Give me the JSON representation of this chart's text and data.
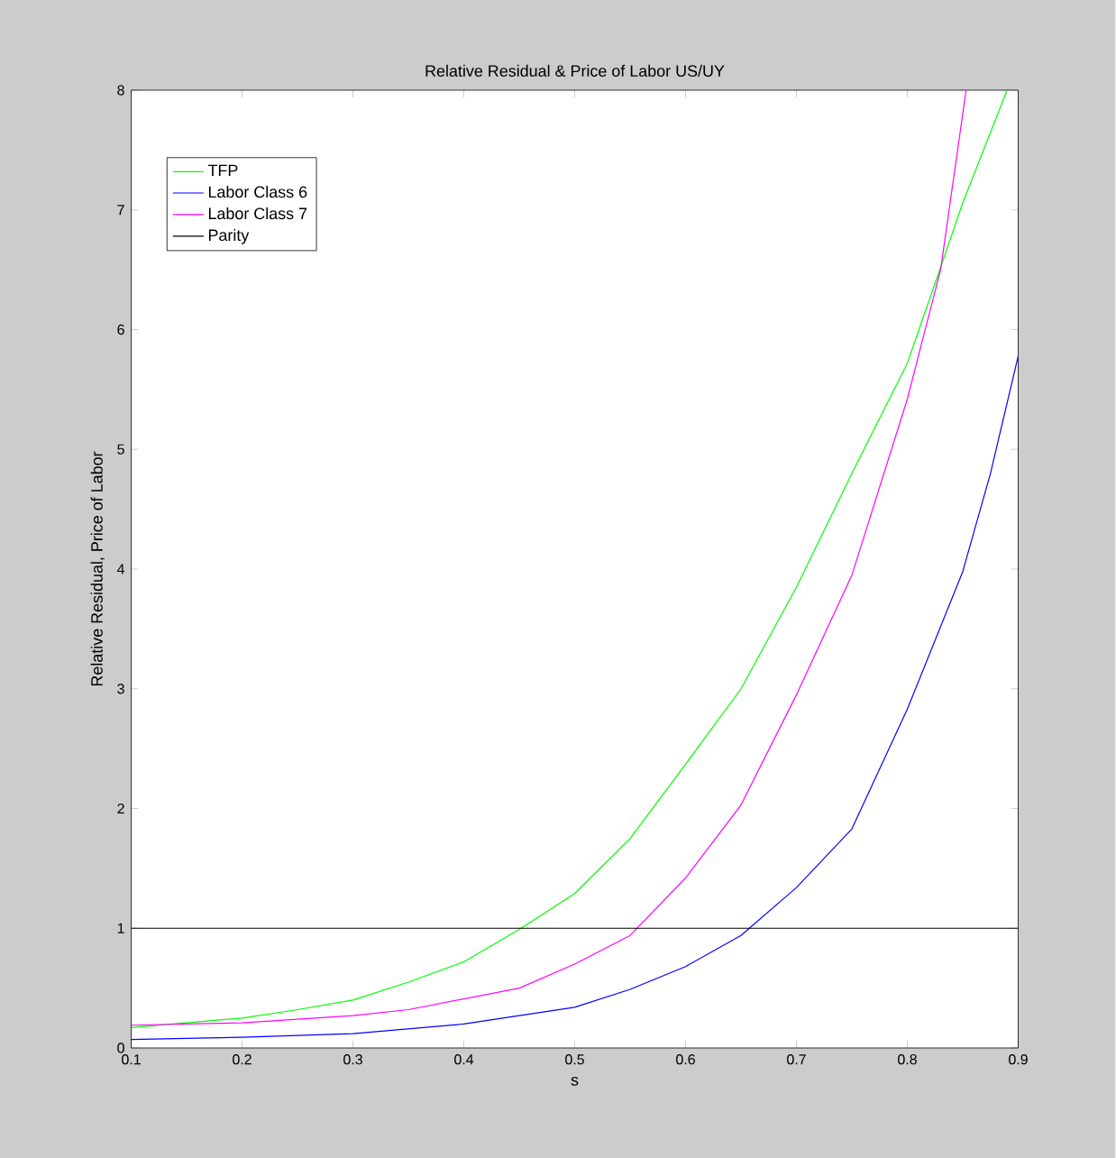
{
  "chart_data": {
    "type": "line",
    "title": "Relative Residual & Price of Labor US/UY",
    "xlabel": "s",
    "ylabel": "Relative Residual, Price of Labor",
    "xlim": [
      0.1,
      0.9
    ],
    "ylim": [
      0,
      8
    ],
    "xticks": [
      0.1,
      0.2,
      0.3,
      0.4,
      0.5,
      0.6,
      0.7,
      0.8,
      0.9
    ],
    "yticks": [
      0,
      1,
      2,
      3,
      4,
      5,
      6,
      7,
      8
    ],
    "legend": "top left",
    "line_style": "solid",
    "series": [
      {
        "name": "TFP",
        "color": "#00ff00",
        "x": [
          0.1,
          0.2,
          0.25,
          0.3,
          0.35,
          0.4,
          0.45,
          0.5,
          0.55,
          0.6,
          0.65,
          0.7,
          0.75,
          0.8,
          0.83,
          0.85,
          0.89
        ],
        "values": [
          0.17,
          0.25,
          0.32,
          0.4,
          0.55,
          0.72,
          0.99,
          1.29,
          1.75,
          2.37,
          3.0,
          3.85,
          4.8,
          5.72,
          6.52,
          7.06,
          8.0
        ]
      },
      {
        "name": "Labor Class 6",
        "color": "#0000ff",
        "x": [
          0.1,
          0.2,
          0.3,
          0.4,
          0.5,
          0.55,
          0.6,
          0.65,
          0.7,
          0.75,
          0.8,
          0.85,
          0.875,
          0.9
        ],
        "values": [
          0.07,
          0.09,
          0.12,
          0.2,
          0.34,
          0.49,
          0.68,
          0.94,
          1.34,
          1.83,
          2.83,
          3.98,
          4.8,
          5.78
        ]
      },
      {
        "name": "Labor Class 7",
        "color": "#ff00ff",
        "x": [
          0.1,
          0.2,
          0.3,
          0.35,
          0.4,
          0.45,
          0.5,
          0.55,
          0.6,
          0.65,
          0.7,
          0.75,
          0.8,
          0.83,
          0.853
        ],
        "values": [
          0.19,
          0.21,
          0.27,
          0.32,
          0.41,
          0.5,
          0.7,
          0.94,
          1.42,
          2.03,
          2.95,
          3.95,
          5.42,
          6.5,
          8.0
        ]
      },
      {
        "name": "Parity",
        "color": "#000000",
        "x": [
          0.1,
          0.9
        ],
        "values": [
          1,
          1
        ]
      }
    ]
  }
}
